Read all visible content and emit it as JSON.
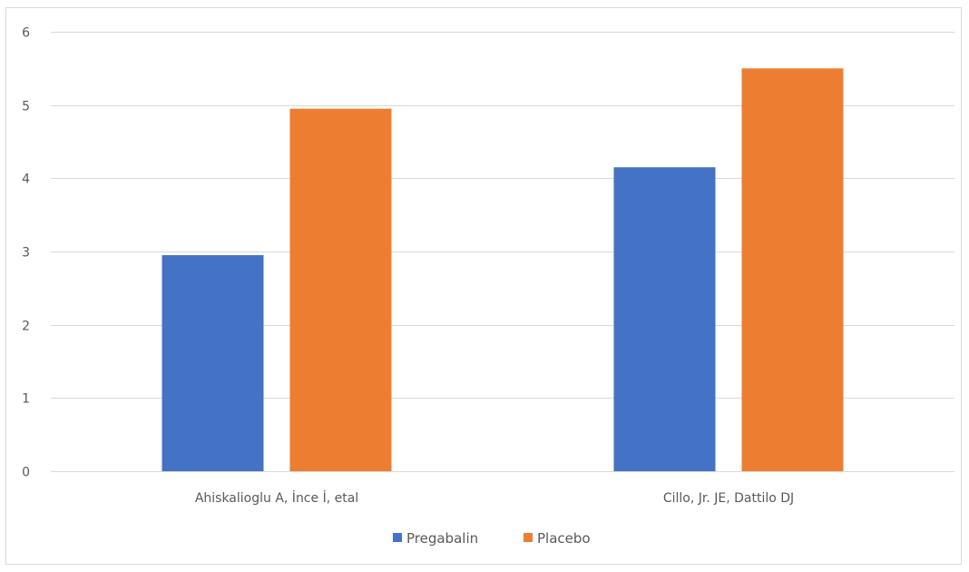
{
  "chart_data": {
    "type": "bar",
    "title": "",
    "xlabel": "",
    "ylabel": "",
    "categories": [
      "Ahiskalioglu A, İnce İ, etal",
      "Cillo, Jr. JE, Dattilo DJ"
    ],
    "series": [
      {
        "name": "Pregabalin",
        "values": [
          2.95,
          4.15
        ],
        "color": "#4472c4"
      },
      {
        "name": "Placebo",
        "values": [
          4.95,
          5.5
        ],
        "color": "#ed7d31"
      }
    ],
    "ylim": [
      0,
      6
    ],
    "yticks": [
      "0",
      "1",
      "2",
      "3",
      "4",
      "5",
      "6"
    ],
    "grid": true,
    "legend_position": "bottom",
    "gridline_color": "#d9d9d9"
  }
}
